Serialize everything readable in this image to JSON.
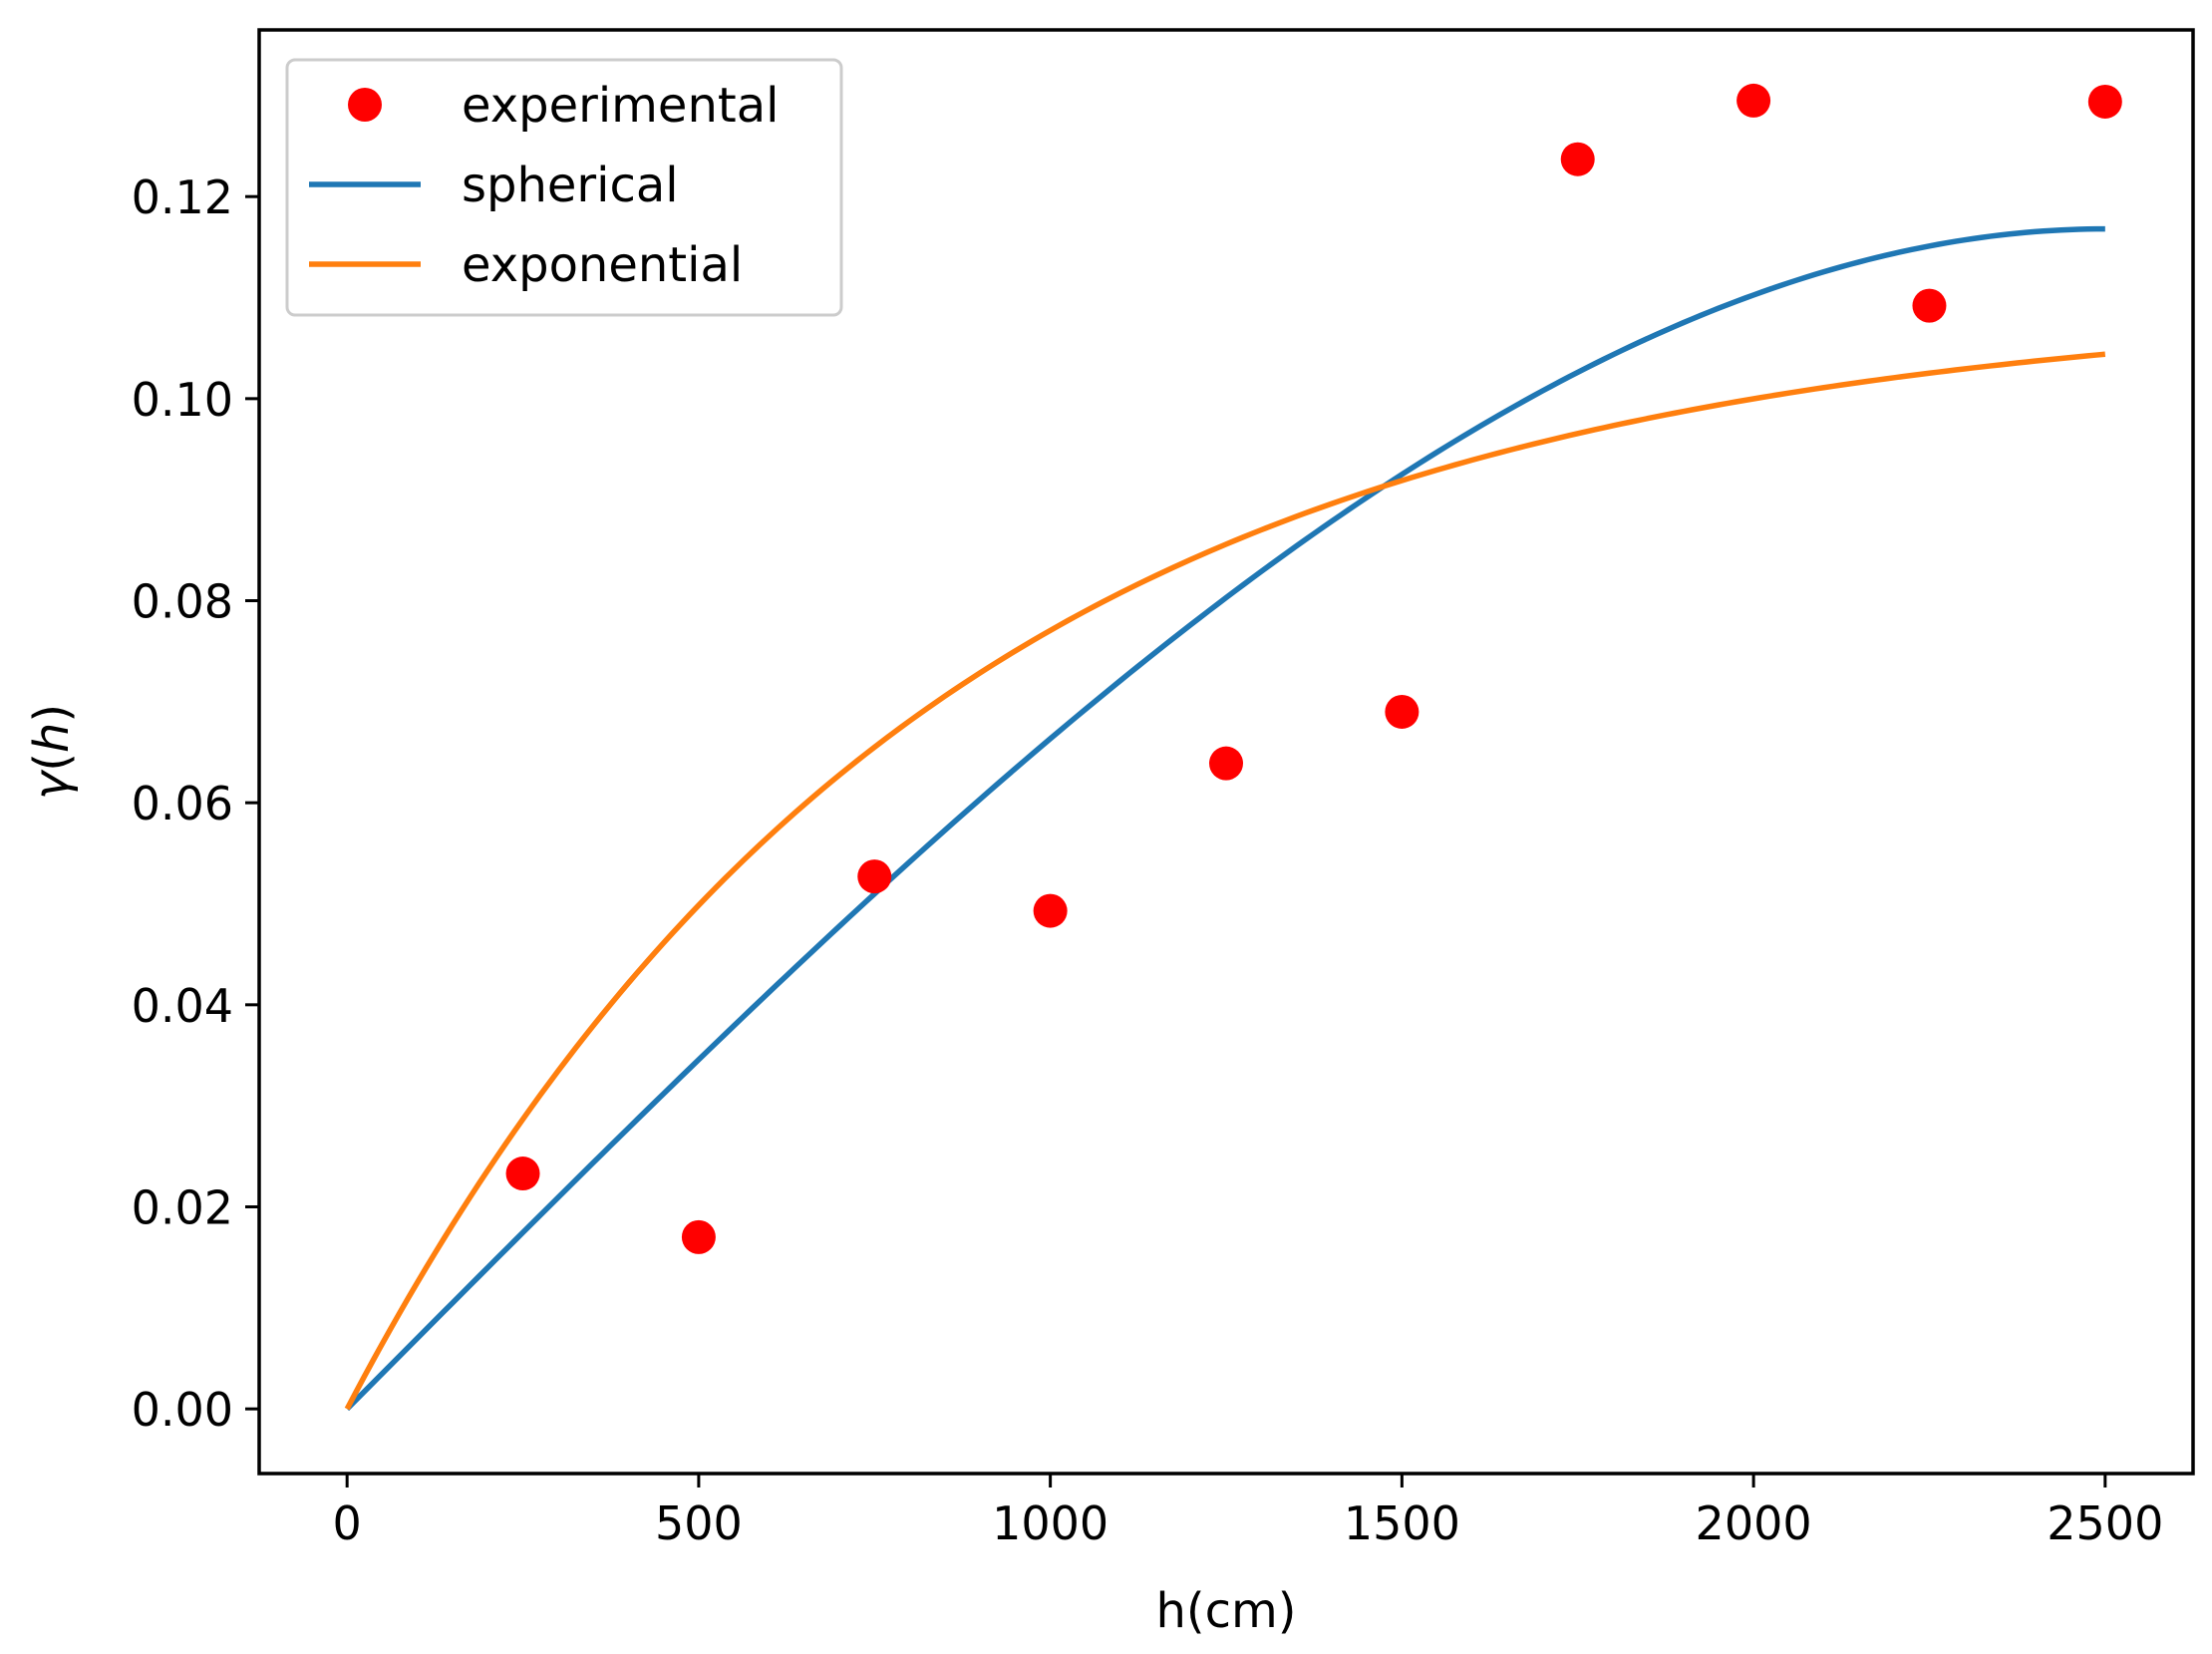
{
  "chart_data": {
    "type": "scatter",
    "xlabel": "h(cm)",
    "ylabel_symbol": "γ",
    "ylabel_var": "h",
    "xlim": [
      -125,
      2625
    ],
    "ylim": [
      -0.0064,
      0.1365
    ],
    "x_ticks": [
      0,
      500,
      1000,
      1500,
      2000,
      2500
    ],
    "x_tick_labels": [
      "0",
      "500",
      "1000",
      "1500",
      "2000",
      "2500"
    ],
    "y_ticks": [
      0.0,
      0.02,
      0.04,
      0.06,
      0.08,
      0.1,
      0.12
    ],
    "y_tick_labels": [
      "0.00",
      "0.02",
      "0.04",
      "0.06",
      "0.08",
      "0.10",
      "0.12"
    ],
    "grid": false,
    "legend_placement": "upper-left",
    "series": [
      {
        "name": "experimental",
        "kind": "markers",
        "color": "#ff0000",
        "x": [
          250,
          500,
          750,
          1000,
          1250,
          1500,
          1750,
          2000,
          2250,
          2500
        ],
        "y": [
          0.0233,
          0.017,
          0.0527,
          0.0493,
          0.0639,
          0.069,
          0.1237,
          0.1295,
          0.1092,
          0.1294
        ]
      },
      {
        "name": "spherical",
        "kind": "line",
        "color": "#1f77b4",
        "model": "spherical",
        "nugget": 0.0,
        "sill": 0.1168,
        "range": 2500,
        "x_range": [
          0,
          2500
        ]
      },
      {
        "name": "exponential",
        "kind": "line",
        "color": "#ff7f0e",
        "model": "exponential",
        "nugget": 0.0,
        "sill": 0.1097,
        "range": 825,
        "x_range": [
          0,
          2500
        ]
      }
    ]
  }
}
